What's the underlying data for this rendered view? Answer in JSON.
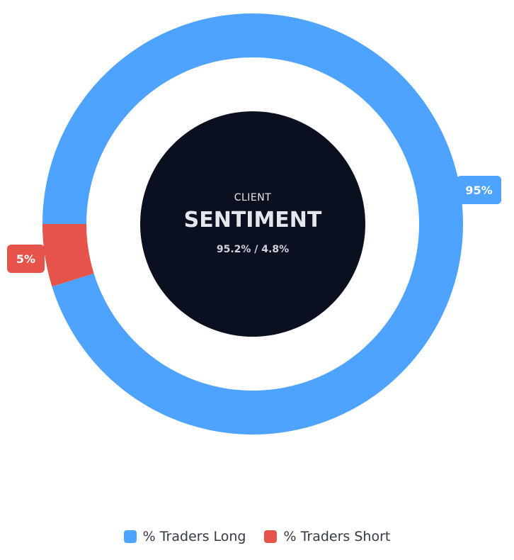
{
  "chart_data": {
    "type": "pie",
    "subtype": "doughnut",
    "categories": [
      "% Traders Long",
      "% Traders Short"
    ],
    "values": [
      95.2,
      4.8
    ],
    "data_labels": [
      "95%",
      "5%"
    ],
    "colors": [
      "#4da3ff",
      "#e5534b"
    ],
    "legend_position": "bottom",
    "center": {
      "line1": "CLIENT",
      "line2": "SENTIMENT",
      "line3": "95.2% / 4.8%",
      "background": "#0b1020"
    }
  }
}
